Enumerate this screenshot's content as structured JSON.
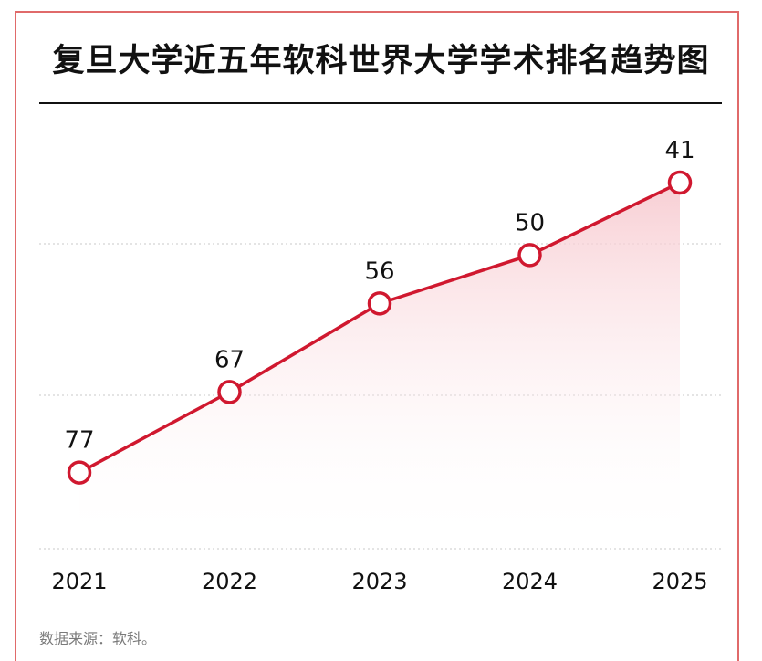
{
  "title": "复旦大学近五年软科世界大学学术排名趋势图",
  "source": "数据来源：软科。",
  "colors": {
    "line": "#d0182f",
    "marker_fill": "#ffffff",
    "area_top": "#f7c9cf",
    "grid": "#c8c8c8",
    "frame": "#e06a6a"
  },
  "chart_data": {
    "type": "line",
    "categories": [
      "2021",
      "2022",
      "2023",
      "2024",
      "2025"
    ],
    "series": [
      {
        "values": [
          77,
          67,
          56,
          50,
          41
        ]
      }
    ],
    "data_labels": [
      "77",
      "67",
      "56",
      "50",
      "41"
    ],
    "y_inverted": true,
    "ylim": [
      86,
      30
    ],
    "grid": true,
    "area_fill": true,
    "legend": "none"
  }
}
